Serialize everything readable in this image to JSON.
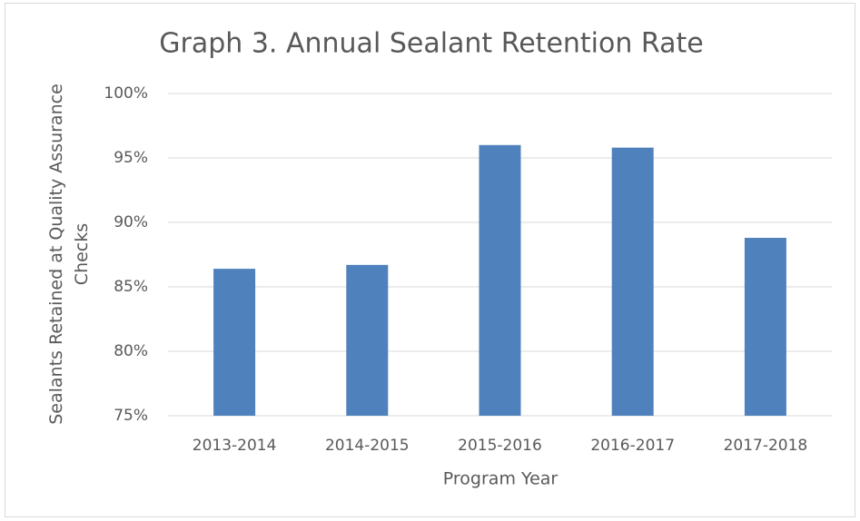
{
  "chart_data": {
    "type": "bar",
    "title": "Graph 3. Annual Sealant Retention Rate",
    "x_label": "Program Year",
    "y_label": "Sealants Retained at Quality Assurance Checks",
    "categories": [
      "2013-2014",
      "2014-2015",
      "2015-2016",
      "2016-2017",
      "2017-2018"
    ],
    "values": [
      86.4,
      86.7,
      96.0,
      95.8,
      88.8
    ],
    "color": "#4f81bd",
    "ylim": [
      75,
      100
    ],
    "yticks": [
      {
        "value": 75,
        "label": "75%"
      },
      {
        "value": 80,
        "label": "80%"
      },
      {
        "value": 85,
        "label": "85%"
      },
      {
        "value": 90,
        "label": "90%"
      },
      {
        "value": 95,
        "label": "95%"
      },
      {
        "value": 100,
        "label": "100%"
      }
    ],
    "grid": true
  }
}
